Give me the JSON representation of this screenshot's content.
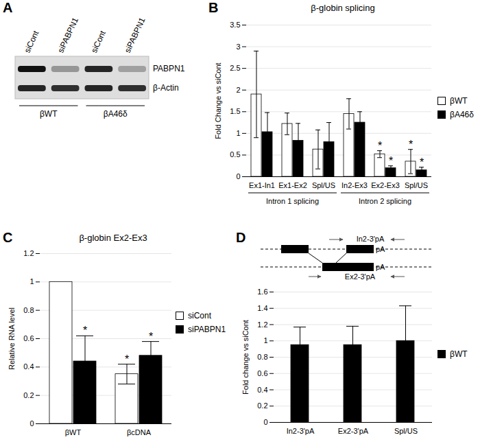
{
  "chart_data": [
    {
      "panel": "A",
      "type": "blot",
      "lanes": [
        "siCont",
        "siPABPN1",
        "siCont",
        "siPABPN1"
      ],
      "groups": [
        {
          "label": "βWT",
          "start": 0,
          "end": 1
        },
        {
          "label": "βA46δ",
          "start": 2,
          "end": 3
        }
      ],
      "bands": [
        {
          "name": "PABPN1",
          "values": [
            1,
            0.35,
            0.9,
            0.3
          ]
        },
        {
          "name": "β-Actin",
          "values": [
            0.9,
            0.85,
            0.9,
            0.85
          ]
        }
      ]
    },
    {
      "panel": "B",
      "type": "bar",
      "title": "β-globin splicing",
      "y_label": "Fold Change vs siCont",
      "categories": [
        "Ex1-In1",
        "Ex1-Ex2",
        "Spl/US",
        "In2-Ex3",
        "Ex2-Ex3",
        "Spl/US"
      ],
      "groups": [
        {
          "label": "Intron 1 splicing",
          "start": 0,
          "end": 2
        },
        {
          "label": "Intron 2 splicing",
          "start": 3,
          "end": 5
        }
      ],
      "series": [
        {
          "name": "βWT",
          "color": "#ffffff",
          "values": [
            1.9,
            1.22,
            0.63,
            1.45,
            0.52,
            0.35
          ],
          "errors": [
            1.0,
            0.25,
            0.45,
            0.35,
            0.08,
            0.28
          ],
          "significance": [
            null,
            null,
            null,
            null,
            "*",
            "*"
          ]
        },
        {
          "name": "βA46δ",
          "color": "#000000",
          "values": [
            1.03,
            0.83,
            0.8,
            1.25,
            0.2,
            0.15
          ],
          "errors": [
            0.45,
            0.4,
            0.45,
            0.25,
            0.05,
            0.07
          ],
          "significance": [
            null,
            null,
            null,
            null,
            "*",
            "*"
          ]
        }
      ],
      "ylim": [
        0,
        3.5
      ],
      "yticks": [
        0,
        0.5,
        1,
        1.5,
        2,
        2.5,
        3,
        3.5
      ],
      "grid": true,
      "legend": "right"
    },
    {
      "panel": "C",
      "type": "bar",
      "title": "β-globin Ex2-Ex3",
      "y_label": "Relative RNA level",
      "categories": [
        "βWT",
        "βcDNA"
      ],
      "series": [
        {
          "name": "siCont",
          "color": "#ffffff",
          "values": [
            1.0,
            0.35
          ],
          "errors": [
            null,
            0.07
          ],
          "significance": [
            null,
            "*"
          ]
        },
        {
          "name": "siPABPN1",
          "color": "#000000",
          "values": [
            0.44,
            0.48
          ],
          "errors": [
            0.18,
            0.1
          ],
          "significance": [
            "*",
            "*"
          ]
        }
      ],
      "ylim": [
        0,
        1.2
      ],
      "yticks": [
        0,
        0.2,
        0.4,
        0.6,
        0.8,
        1,
        1.2
      ],
      "grid": true,
      "legend": "right"
    },
    {
      "panel": "D",
      "type": "bar",
      "y_label": "Fold change vs siCont",
      "annotations": [
        "In2-3'pA",
        "pA",
        "pA",
        "Ex2-3'pA"
      ],
      "categories": [
        "In2-3'pA",
        "Ex2-3'pA",
        "Spl/US"
      ],
      "series": [
        {
          "name": "βWT",
          "color": "#000000",
          "values": [
            0.95,
            0.95,
            1.0
          ],
          "errors": [
            0.22,
            0.23,
            0.43
          ]
        }
      ],
      "ylim": [
        0,
        1.6
      ],
      "yticks": [
        0,
        0.2,
        0.4,
        0.6,
        0.8,
        1,
        1.2,
        1.4,
        1.6
      ],
      "grid": true,
      "legend": "right"
    }
  ]
}
